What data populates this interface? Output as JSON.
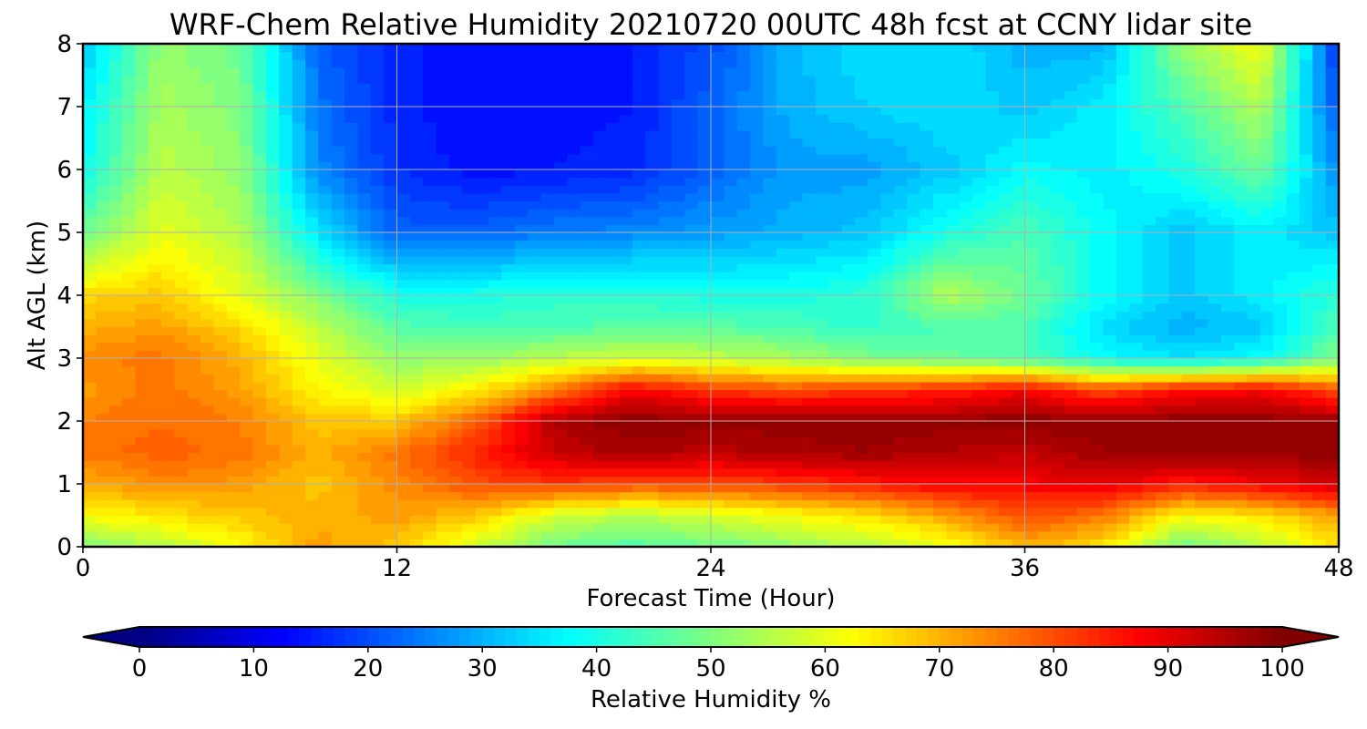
{
  "chart_data": {
    "type": "heatmap",
    "title": "WRF-Chem Relative Humidity 20210720 00UTC 48h fcst at CCNY lidar site",
    "xlabel": "Forecast Time (Hour)",
    "ylabel": "Alt AGL (km)",
    "xlim": [
      0,
      48
    ],
    "ylim": [
      0,
      8
    ],
    "x_ticks": [
      0,
      12,
      24,
      36,
      48
    ],
    "y_ticks": [
      0,
      1,
      2,
      3,
      4,
      5,
      6,
      7,
      8
    ],
    "grid": true,
    "colormap": "jet",
    "colorbar": {
      "label": "Relative Humidity %",
      "range": [
        0,
        100
      ],
      "ticks": [
        0,
        10,
        20,
        30,
        40,
        50,
        60,
        70,
        80,
        90,
        100
      ],
      "extend": "both",
      "orientation": "horizontal",
      "placement": "bottom"
    },
    "x": [
      0,
      3,
      6,
      9,
      12,
      15,
      18,
      21,
      24,
      27,
      30,
      33,
      36,
      39,
      42,
      45,
      48
    ],
    "y": [
      0,
      0.5,
      1,
      1.5,
      2,
      2.5,
      3,
      3.5,
      4,
      5,
      6,
      7,
      8
    ],
    "z": [
      [
        50,
        55,
        62,
        72,
        68,
        58,
        48,
        45,
        48,
        52,
        55,
        60,
        70,
        65,
        48,
        55,
        65
      ],
      [
        62,
        65,
        68,
        70,
        72,
        68,
        58,
        55,
        58,
        62,
        65,
        72,
        80,
        76,
        62,
        65,
        72
      ],
      [
        70,
        74,
        72,
        68,
        74,
        80,
        82,
        80,
        80,
        82,
        85,
        88,
        88,
        90,
        85,
        88,
        92
      ],
      [
        76,
        78,
        76,
        70,
        76,
        84,
        93,
        96,
        94,
        96,
        97,
        95,
        93,
        97,
        98,
        98,
        98
      ],
      [
        75,
        77,
        75,
        68,
        68,
        78,
        95,
        99,
        98,
        98,
        98,
        98,
        99,
        98,
        99,
        99,
        97
      ],
      [
        72,
        76,
        72,
        63,
        58,
        64,
        75,
        88,
        82,
        80,
        82,
        84,
        88,
        80,
        86,
        88,
        80
      ],
      [
        74,
        76,
        70,
        60,
        52,
        52,
        56,
        58,
        57,
        54,
        50,
        48,
        45,
        38,
        35,
        38,
        50
      ],
      [
        70,
        72,
        66,
        56,
        46,
        44,
        45,
        46,
        46,
        45,
        42,
        45,
        45,
        34,
        30,
        32,
        45
      ],
      [
        66,
        68,
        60,
        50,
        40,
        40,
        42,
        42,
        40,
        40,
        42,
        55,
        48,
        38,
        32,
        36,
        42
      ],
      [
        48,
        60,
        55,
        35,
        22,
        22,
        25,
        26,
        28,
        30,
        32,
        40,
        45,
        38,
        32,
        36,
        32
      ],
      [
        38,
        56,
        52,
        26,
        17,
        14,
        15,
        16,
        22,
        28,
        28,
        32,
        38,
        36,
        40,
        48,
        26
      ],
      [
        36,
        54,
        50,
        24,
        16,
        13,
        14,
        15,
        22,
        30,
        33,
        35,
        32,
        36,
        45,
        55,
        20
      ],
      [
        32,
        52,
        48,
        22,
        16,
        13,
        14,
        15,
        20,
        30,
        35,
        35,
        30,
        30,
        52,
        62,
        16
      ]
    ]
  }
}
